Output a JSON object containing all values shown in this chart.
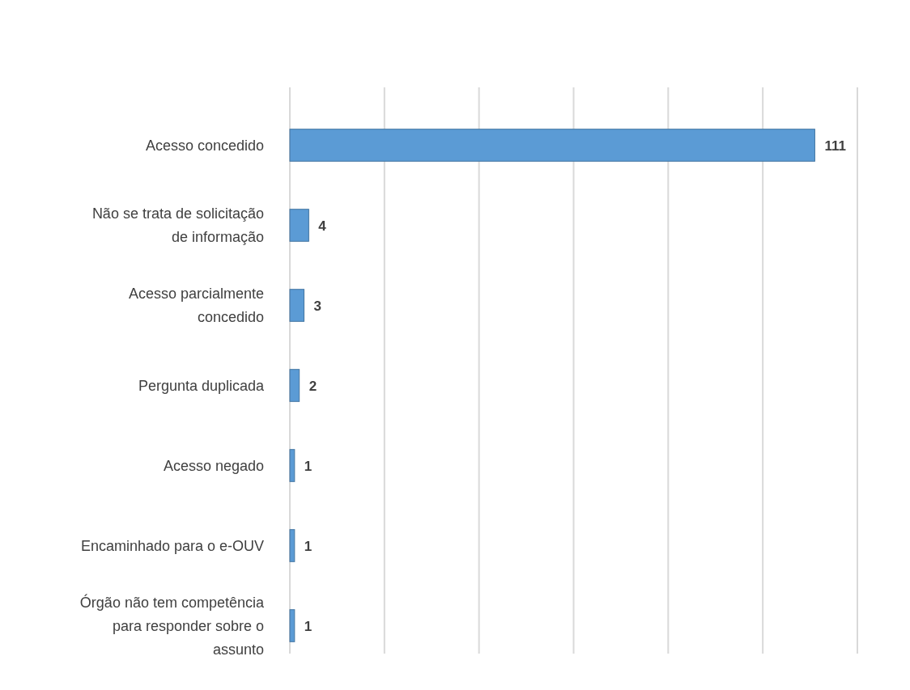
{
  "chart_data": {
    "type": "bar",
    "orientation": "horizontal",
    "categories": [
      "Acesso concedido",
      "Não se trata de solicitação de informação",
      "Acesso parcialmente concedido",
      "Pergunta duplicada",
      "Acesso negado",
      "Encaminhado para o e-OUV",
      "Órgão não tem competência para responder sobre o assunto"
    ],
    "values": [
      111,
      4,
      3,
      2,
      1,
      1,
      1
    ],
    "color": "#5b9bd5",
    "xlim": [
      0,
      120
    ],
    "xticks": [
      {
        "value": 0,
        "label": null
      },
      {
        "value": 20,
        "label": null
      },
      {
        "value": 40,
        "label": null
      },
      {
        "value": 60,
        "label": null
      },
      {
        "value": 80,
        "label": null
      },
      {
        "value": 100,
        "label": null
      },
      {
        "value": 120,
        "label": null
      }
    ],
    "grid": "x",
    "data_labels": true
  }
}
